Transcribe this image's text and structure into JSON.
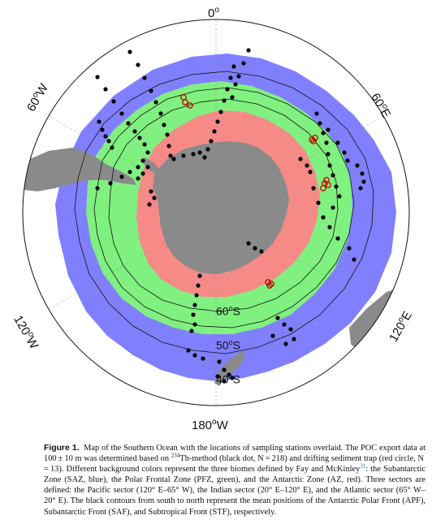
{
  "map": {
    "longitude_labels": {
      "top": "0",
      "top_degree": "o",
      "left_upper": "60",
      "left_upper_suffix": "W",
      "right_upper": "60",
      "right_upper_suffix": "E",
      "left_lower": "120",
      "left_lower_suffix": "W",
      "right_lower": "120",
      "right_lower_suffix": "E",
      "bottom": "180",
      "bottom_suffix": "W"
    },
    "latitude_labels": {
      "lat60": "60",
      "lat50": "50",
      "lat40": "40",
      "degree": "o",
      "suffix": "S"
    },
    "colors": {
      "saz": "#8080ff",
      "pfz": "#80f080",
      "az": "#f58a87",
      "land": "#8a8a8a",
      "station": "#000000",
      "trap": "#cc0000"
    },
    "station_count": 218,
    "trap_count": 13
  },
  "caption": {
    "label": "Figure 1.",
    "part1": "Map of the Southern Ocean with the locations of sampling stations overlaid. The POC export data at 100 ± 10 m was determined based on ",
    "iso_mass": "234",
    "part2": "Th-method (black dot, N = 218) and drifting sediment trap (red circle, N = 13). Different background colors represent the three biomes defined by Fay and McKinley",
    "ref": "31",
    "part3": ": the Subantarctic Zone (SAZ, blue), the Polar Frontal Zone (PFZ, green), and the Antarctic Zone (AZ, red). Three sectors are defined: the Pacific sector (120° E–65° W), the Indian sector (20° E–120° E), and the Atlantic sector (65° W–20° E). The black contours from south to north represent the mean positions of the Antarctic Polar Front (APF), Subantarctic Front (SAF), and Subtropical Front (STF), respectively."
  }
}
